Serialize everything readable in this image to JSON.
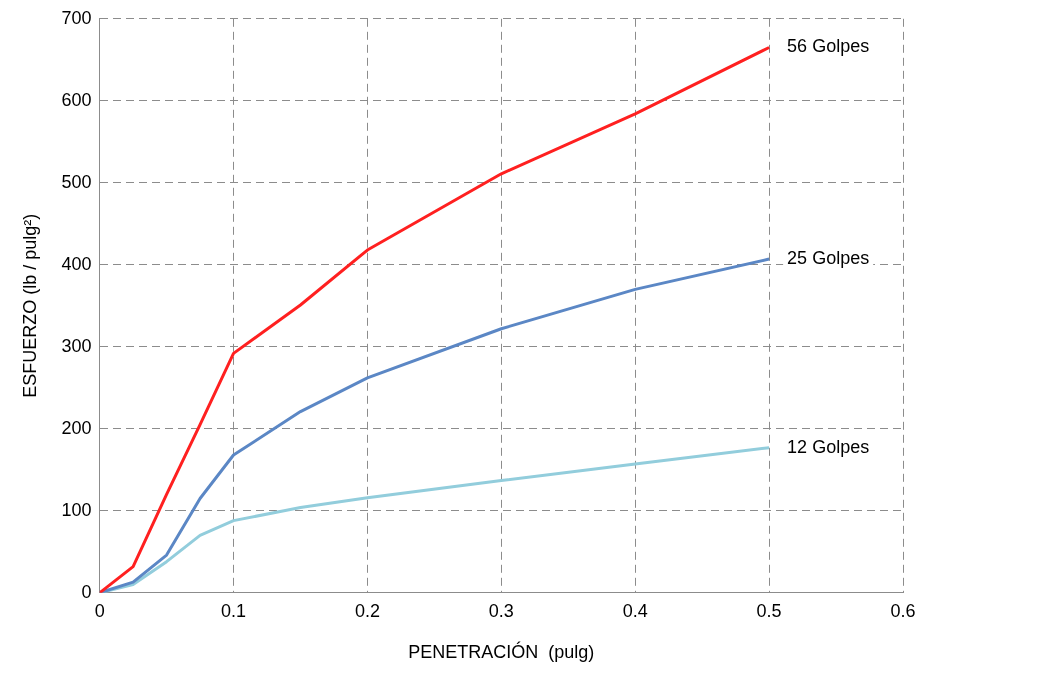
{
  "chart_data": {
    "type": "line",
    "xlabel": "PENETRACIÓN  (pulg)",
    "ylabel": "ESFUERZO (lb / pulg²)",
    "x": [
      0,
      0.025,
      0.05,
      0.075,
      0.1,
      0.15,
      0.2,
      0.3,
      0.4,
      0.5
    ],
    "series": [
      {
        "name": "56 Golpes",
        "color": "#ff2020",
        "values": [
          0,
          32,
          120,
          205,
          292,
          351,
          418,
          511,
          584,
          665
        ]
      },
      {
        "name": "25 Golpes",
        "color": "#5b87c5",
        "values": [
          0,
          13,
          46,
          115,
          168,
          221,
          262,
          322,
          370,
          407
        ]
      },
      {
        "name": "12 Golpes",
        "color": "#92cddc",
        "values": [
          0,
          10,
          38,
          70,
          88,
          104,
          116,
          137,
          157,
          177
        ]
      }
    ],
    "xlim": [
      0,
      0.6
    ],
    "xticks": [
      0,
      0.1,
      0.2,
      0.3,
      0.4,
      0.5,
      0.6
    ],
    "ylim": [
      0,
      700
    ],
    "yticks": [
      0,
      100,
      200,
      300,
      400,
      500,
      600,
      700
    ],
    "grid": true,
    "legend": false,
    "marker": "none",
    "line_style": "solid"
  }
}
